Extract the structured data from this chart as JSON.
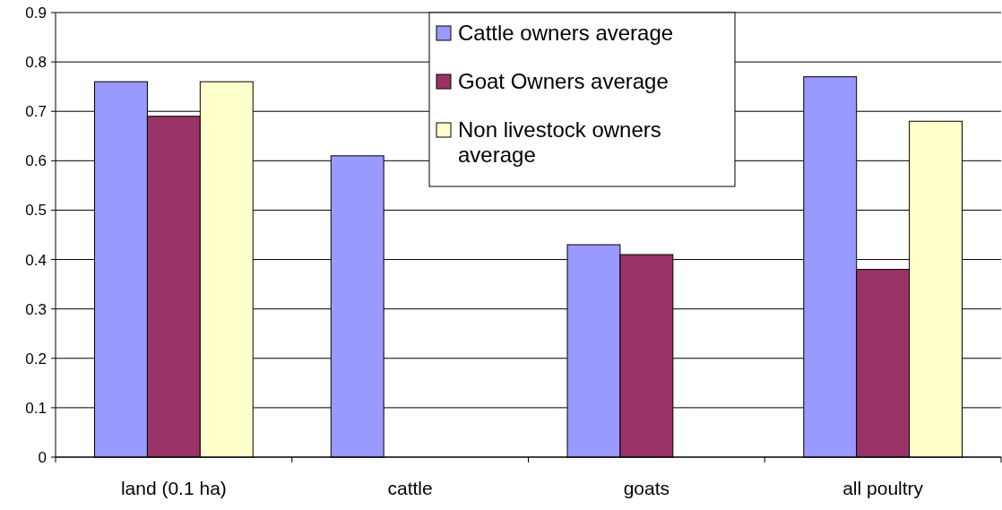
{
  "chart_data": {
    "type": "bar",
    "categories": [
      "land (0.1 ha)",
      "cattle",
      "goats",
      "all poultry"
    ],
    "series": [
      {
        "name": "Cattle owners average",
        "color": "#9999ff",
        "values": [
          0.76,
          0.61,
          0.43,
          0.77
        ]
      },
      {
        "name": "Goat Owners average",
        "color": "#993366",
        "values": [
          0.69,
          null,
          0.41,
          0.38
        ]
      },
      {
        "name": "Non livestock owners average",
        "color": "#ffffcc",
        "values": [
          0.76,
          null,
          null,
          0.68
        ]
      }
    ],
    "ylim": [
      0,
      0.9
    ],
    "yticks": [
      0,
      0.1,
      0.2,
      0.3,
      0.4,
      0.5,
      0.6,
      0.7,
      0.8,
      0.9
    ],
    "grid": "y",
    "legend": "top"
  }
}
